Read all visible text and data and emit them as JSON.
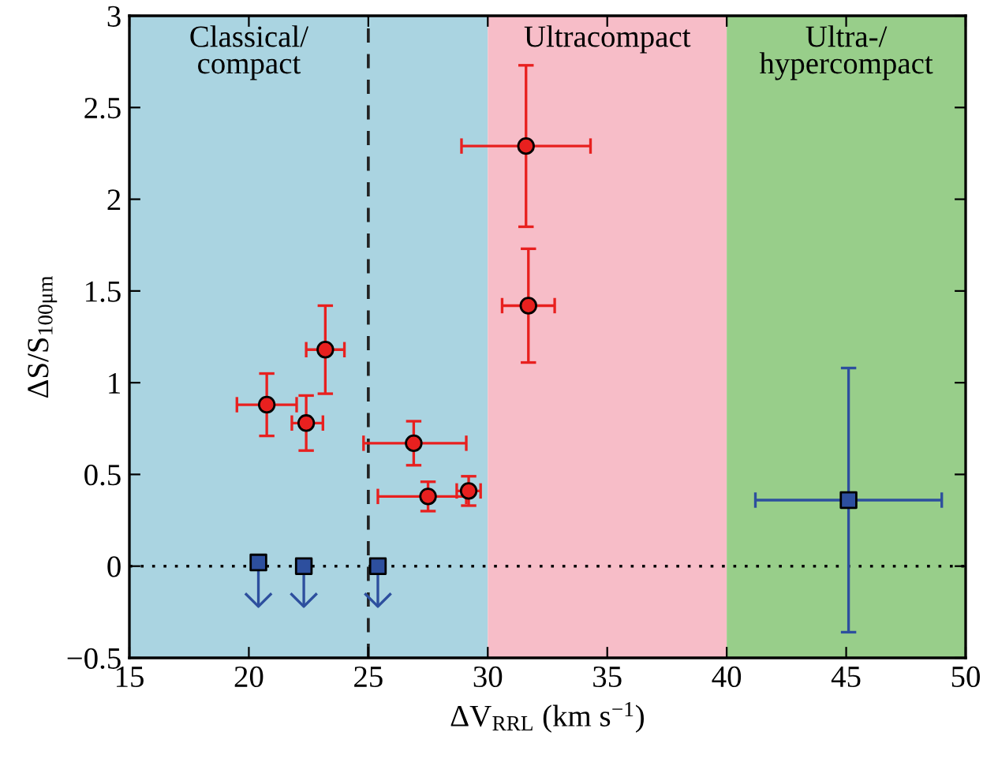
{
  "chart_data": {
    "type": "scatter",
    "xlabel": "ΔV$_{RRL}$ (km s$^{−1}$)",
    "ylabel": "ΔS/S$_{100μm}$",
    "xlim": [
      15,
      50
    ],
    "xticks": [
      15,
      20,
      25,
      30,
      35,
      40,
      45,
      50
    ],
    "ylim": [
      -0.5,
      3
    ],
    "yticks": [
      {
        "value": -0.5,
        "label": "−0.5"
      },
      0,
      0.5,
      1,
      1.5,
      2,
      2.5,
      3
    ],
    "series": [
      {
        "marker": "circle",
        "color": "#e8201f",
        "x": [
          20.75,
          22.4,
          23.2,
          26.9,
          27.5,
          29.2,
          31.6,
          31.7
        ],
        "values": [
          0.88,
          0.78,
          1.18,
          0.67,
          0.38,
          0.41,
          2.29,
          1.42
        ],
        "errors": [
          [
            0.71,
            1.05
          ],
          [
            0.63,
            0.93
          ],
          [
            0.94,
            1.42
          ],
          [
            0.55,
            0.79
          ],
          [
            0.3,
            0.46
          ],
          [
            0.33,
            0.49
          ],
          [
            1.85,
            2.73
          ],
          [
            1.11,
            1.73
          ]
        ],
        "xerrors": [
          [
            19.5,
            22.0
          ],
          [
            21.8,
            23.1
          ],
          [
            22.4,
            24.0
          ],
          [
            24.8,
            29.1
          ],
          [
            25.4,
            29.1
          ],
          [
            28.7,
            29.7
          ],
          [
            28.9,
            34.3
          ],
          [
            30.6,
            32.8
          ]
        ]
      },
      {
        "marker": "square",
        "color": "#2d4f9e",
        "x": [
          20.4,
          22.3,
          25.4
        ],
        "values": [
          0.02,
          0,
          0
        ],
        "errors": [
          [
            -0.22,
            0.02
          ],
          [
            -0.22,
            0
          ],
          [
            -0.22,
            0
          ]
        ]
      },
      {
        "marker": "square",
        "color": "#2d4f9e",
        "x": [
          45.1
        ],
        "values": [
          0.36
        ],
        "errors": [
          [
            -0.36,
            1.08
          ]
        ],
        "xerrors": [
          [
            41.2,
            49.0
          ]
        ]
      }
    ],
    "bands": [
      {
        "axis": "x",
        "from": 15,
        "to": 30,
        "label": "Classical/\ncompact",
        "color": "#aad4e1"
      },
      {
        "axis": "x",
        "from": 30,
        "to": 40,
        "label": "Ultracompact",
        "color": "#f7bdc8"
      },
      {
        "axis": "x",
        "from": 40,
        "to": 50,
        "label": "Ultra-/\nhypercompact",
        "color": "#98ce8a"
      }
    ],
    "ref_lines": [
      {
        "axis": "x",
        "value": 25,
        "line_style": "dashed",
        "color": "#222222"
      },
      {
        "axis": "y",
        "value": 0,
        "line_style": "dotted",
        "color": "#000000"
      }
    ]
  }
}
